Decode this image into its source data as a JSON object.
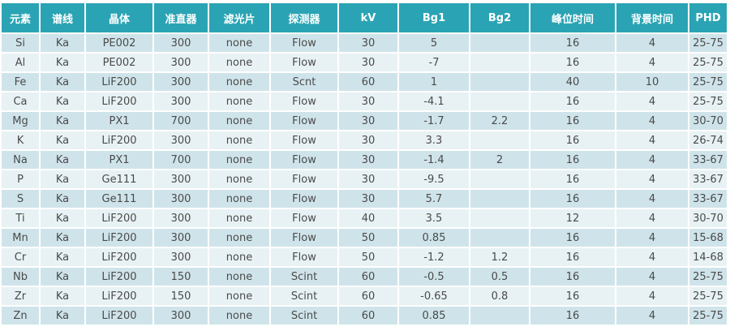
{
  "table": {
    "headers": [
      "元素",
      "谱线",
      "晶体",
      "准直器",
      "滤光片",
      "探测器",
      "kV",
      "Bg1",
      "Bg2",
      "峰位时间",
      "背景时间",
      "PHD"
    ],
    "rows": [
      [
        "Si",
        "Ka",
        "PE002",
        "300",
        "none",
        "Flow",
        "30",
        "5",
        "",
        "16",
        "4",
        "25-75"
      ],
      [
        "Al",
        "Ka",
        "PE002",
        "300",
        "none",
        "Flow",
        "30",
        "-7",
        "",
        "16",
        "4",
        "25-75"
      ],
      [
        "Fe",
        "Ka",
        "LiF200",
        "300",
        "none",
        "Scnt",
        "60",
        "1",
        "",
        "40",
        "10",
        "25-75"
      ],
      [
        "Ca",
        "Ka",
        "LiF200",
        "300",
        "none",
        "Flow",
        "30",
        "-4.1",
        "",
        "16",
        "4",
        "25-75"
      ],
      [
        "Mg",
        "Ka",
        "PX1",
        "700",
        "none",
        "Flow",
        "30",
        "-1.7",
        "2.2",
        "16",
        "4",
        "30-70"
      ],
      [
        "K",
        "Ka",
        "LiF200",
        "300",
        "none",
        "Flow",
        "30",
        "3.3",
        "",
        "16",
        "4",
        "26-74"
      ],
      [
        "Na",
        "Ka",
        "PX1",
        "700",
        "none",
        "Flow",
        "30",
        "-1.4",
        "2",
        "16",
        "4",
        "33-67"
      ],
      [
        "P",
        "Ka",
        "Ge111",
        "300",
        "none",
        "Flow",
        "30",
        "-9.5",
        "",
        "16",
        "4",
        "33-67"
      ],
      [
        "S",
        "Ka",
        "Ge111",
        "300",
        "none",
        "Flow",
        "30",
        "5.7",
        "",
        "16",
        "4",
        "33-67"
      ],
      [
        "Ti",
        "Ka",
        "LiF200",
        "300",
        "none",
        "Flow",
        "40",
        "3.5",
        "",
        "12",
        "4",
        "30-70"
      ],
      [
        "Mn",
        "Ka",
        "LiF200",
        "300",
        "none",
        "Flow",
        "50",
        "0.85",
        "",
        "16",
        "4",
        "15-68"
      ],
      [
        "Cr",
        "Ka",
        "LiF200",
        "300",
        "none",
        "Flow",
        "50",
        "-1.2",
        "1.2",
        "16",
        "4",
        "14-68"
      ],
      [
        "Nb",
        "Ka",
        "LiF200",
        "150",
        "none",
        "Scint",
        "60",
        "-0.5",
        "0.5",
        "16",
        "4",
        "25-75"
      ],
      [
        "Zr",
        "Ka",
        "LiF200",
        "150",
        "none",
        "Scint",
        "60",
        "-0.65",
        "0.8",
        "16",
        "4",
        "25-75"
      ],
      [
        "Zn",
        "Ka",
        "LiF200",
        "300",
        "none",
        "Scint",
        "60",
        "0.85",
        "",
        "16",
        "4",
        "25-75"
      ]
    ]
  },
  "colors": {
    "header_bg": "#2aa4b4",
    "header_text": "#ffffff",
    "row_odd": "#cfe4ea",
    "row_even": "#e8f2f5",
    "cell_text": "#4a4a4a"
  }
}
